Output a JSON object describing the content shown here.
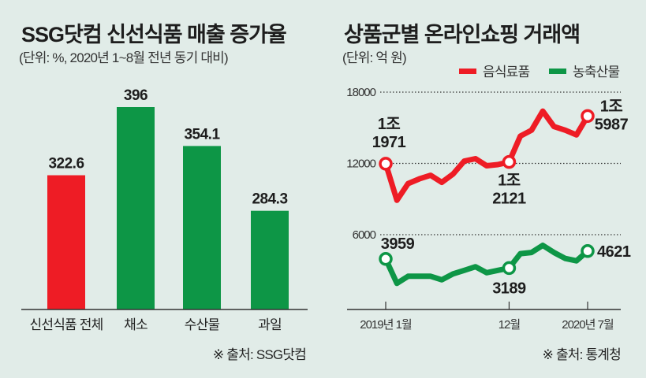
{
  "colors": {
    "background": "#e1ece8",
    "red": "#ee1c25",
    "green": "#0d9646",
    "axis": "#333333"
  },
  "chart_data": [
    {
      "type": "bar",
      "title": "SSG닷컴 신선식품 매출 증가율",
      "subtitle": "(단위: %, 2020년 1~8월 전년 동기 대비)",
      "categories": [
        "신선식품 전체",
        "채소",
        "수산물",
        "과일"
      ],
      "values": [
        322.6,
        396,
        354.1,
        284.3
      ],
      "value_labels": [
        "322.6",
        "396",
        "354.1",
        "284.3"
      ],
      "bar_colors": [
        "#ee1c25",
        "#0d9646",
        "#0d9646",
        "#0d9646"
      ],
      "ylim": [
        178,
        396
      ],
      "grid": false,
      "source": "※ 출처: SSG닷컴"
    },
    {
      "type": "line",
      "title": "상품군별 온라인쇼핑 거래액",
      "subtitle": "(단위: 억 원)",
      "x": [
        "2019-01",
        "2019-02",
        "2019-03",
        "2019-04",
        "2019-05",
        "2019-06",
        "2019-07",
        "2019-08",
        "2019-09",
        "2019-10",
        "2019-11",
        "2019-12",
        "2020-01",
        "2020-02",
        "2020-03",
        "2020-04",
        "2020-05",
        "2020-06",
        "2020-07"
      ],
      "x_ticks": [
        {
          "x": "2019-01",
          "label": "2019년 1월"
        },
        {
          "x": "2019-12",
          "label": "12월"
        },
        {
          "x": "2020-07",
          "label": "2020년 7월"
        }
      ],
      "y_ticks": [
        "18000",
        "12000",
        "6000"
      ],
      "ylim": [
        0,
        18000
      ],
      "grid": "dotted horizontal",
      "legend_position": "top-right",
      "series": [
        {
          "name": "음식료품",
          "color": "#ee1c25",
          "values": [
            11971,
            8900,
            10300,
            10700,
            11000,
            10400,
            11100,
            12200,
            12400,
            11800,
            11900,
            12121,
            14300,
            14800,
            16400,
            15100,
            14800,
            14400,
            15987
          ],
          "annotations": [
            {
              "x": "2019-01",
              "line1": "1조",
              "line2": "1971"
            },
            {
              "x": "2019-12",
              "line1": "1조",
              "line2": "2121"
            },
            {
              "x": "2020-07",
              "line1": "1조",
              "line2": "5987"
            }
          ]
        },
        {
          "name": "농축산물",
          "color": "#0d9646",
          "values": [
            3959,
            1900,
            2500,
            2500,
            2500,
            2200,
            2700,
            3000,
            3300,
            2800,
            3000,
            3189,
            4400,
            4500,
            5100,
            4500,
            4000,
            3800,
            4621
          ],
          "annotations": [
            {
              "x": "2019-01",
              "line1": "3959"
            },
            {
              "x": "2019-12",
              "line1": "3189"
            },
            {
              "x": "2020-07",
              "line1": "4621"
            }
          ]
        }
      ],
      "source": "※ 출처: 통계청"
    }
  ]
}
